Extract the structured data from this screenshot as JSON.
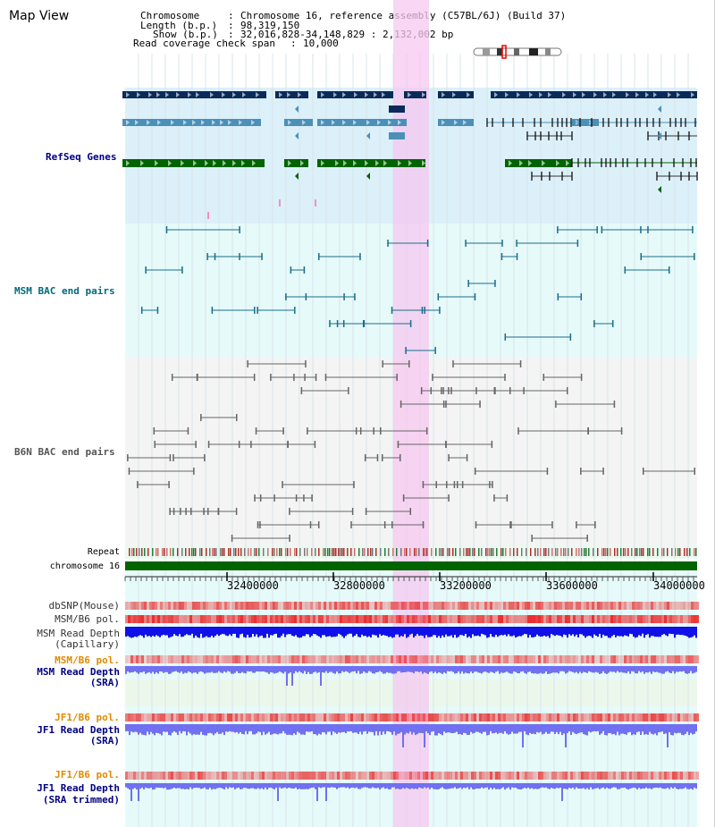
{
  "window": {
    "title": "Map View"
  },
  "header": {
    "chromosome_key": "Chromosome",
    "chromosome_value": "Chromosome 16, reference assembly (C57BL/6J) (Build 37)",
    "length_key": "Length (b.p.)",
    "length_value": "98,319,150",
    "show_key": "Show (b.p.)",
    "show_value": "32,016,828-34,148,829 : 2,132,002 bp",
    "span_key": "Read coverage check span",
    "span_value": "10,000"
  },
  "tracks": {
    "refseq": "RefSeq Genes",
    "msm_bac": "MSM BAC end pairs",
    "b6n_bac": "B6N BAC end pairs",
    "repeat": "Repeat",
    "chromosome": "chromosome 16",
    "dbsnp": "dbSNP(Mouse)",
    "msm_b6_pol": "MSM/B6 pol.",
    "msm_read_depth_cap_1": "MSM Read Depth",
    "msm_read_depth_cap_2": "(Capillary)",
    "msm_b6_pol_2": "MSM/B6 pol.",
    "msm_read_depth_sra_1": "MSM Read Depth",
    "msm_read_depth_sra_2": "(SRA)",
    "jf1_b6_pol": "JF1/B6 pol.",
    "jf1_read_depth_sra_1": "JF1 Read Depth",
    "jf1_read_depth_sra_2": "(SRA)",
    "jf1_b6_pol_2": "JF1/B6 pol.",
    "jf1_read_depth_trim_1": "JF1 Read Depth",
    "jf1_read_depth_trim_2": "(SRA trimmed)"
  },
  "axis": {
    "ticks": [
      "32400000",
      "32800000",
      "33200000",
      "33600000",
      "34000000"
    ]
  },
  "colors": {
    "refseq_bg": "#dcf0fa",
    "bac_msm_bg": "#e6fafa",
    "bac_b6n_bg": "#f4f4f4",
    "highlight": "#f5c8f0",
    "dark_navy": "#0a2a5a",
    "mid_blue": "#4a90b8",
    "green": "#006400",
    "teal": "#1a6e8a",
    "depth_blue": "#1010e8",
    "depth_light": "#7070f0",
    "pol_red": "#e83030"
  }
}
